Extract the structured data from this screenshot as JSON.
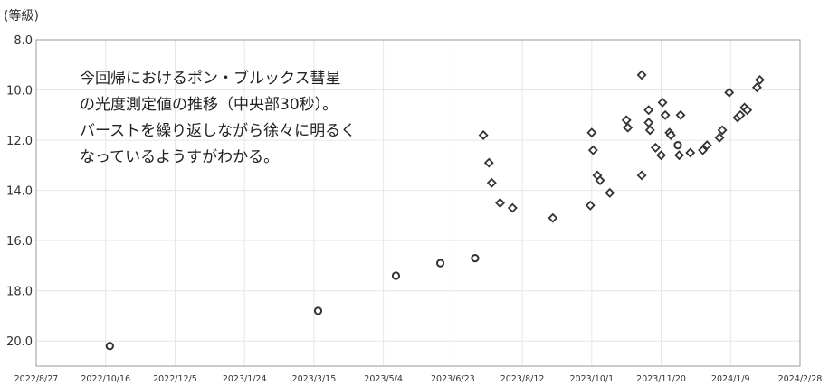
{
  "chart_data": {
    "type": "scatter",
    "ylabel": "(等級)",
    "annotation_lines": [
      "今回帰におけるポン・ブルックス彗星",
      "の光度測定値の推移（中央部30秒）。",
      "バーストを繰り返しながら徐々に明るく",
      "なっているようすがわかる。"
    ],
    "x_ticks": [
      "2022/8/27",
      "2022/10/16",
      "2022/12/5",
      "2023/1/24",
      "2023/3/15",
      "2023/5/4",
      "2023/6/23",
      "2023/8/12",
      "2023/10/1",
      "2023/11/20",
      "2024/1/9",
      "2024/2/28"
    ],
    "y_ticks": [
      "8.0",
      "10.0",
      "12.0",
      "14.0",
      "16.0",
      "18.0",
      "20.0"
    ],
    "xlim": [
      "2022/8/27",
      "2024/2/28"
    ],
    "ylim": [
      8.0,
      21.0
    ],
    "y_inverted": true,
    "grid": true,
    "series": [
      {
        "marker": "circle",
        "color": "#333333",
        "points": [
          {
            "x": "2022/10/19",
            "y": 20.2
          },
          {
            "x": "2023/3/18",
            "y": 18.8
          },
          {
            "x": "2023/5/13",
            "y": 17.4
          },
          {
            "x": "2023/6/14",
            "y": 16.9
          },
          {
            "x": "2023/7/9",
            "y": 16.7
          },
          {
            "x": "2023/12/2",
            "y": 12.2
          }
        ]
      },
      {
        "marker": "diamond",
        "color": "#333333",
        "points": [
          {
            "x": "2023/7/15",
            "y": 11.8
          },
          {
            "x": "2023/7/19",
            "y": 12.9
          },
          {
            "x": "2023/7/21",
            "y": 13.7
          },
          {
            "x": "2023/7/27",
            "y": 14.5
          },
          {
            "x": "2023/8/5",
            "y": 14.7
          },
          {
            "x": "2023/9/3",
            "y": 15.1
          },
          {
            "x": "2023/9/30",
            "y": 14.6
          },
          {
            "x": "2023/10/1",
            "y": 11.7
          },
          {
            "x": "2023/10/2",
            "y": 12.4
          },
          {
            "x": "2023/10/5",
            "y": 13.4
          },
          {
            "x": "2023/10/7",
            "y": 13.6
          },
          {
            "x": "2023/10/14",
            "y": 14.1
          },
          {
            "x": "2023/10/26",
            "y": 11.2
          },
          {
            "x": "2023/10/27",
            "y": 11.5
          },
          {
            "x": "2023/11/6",
            "y": 13.4
          },
          {
            "x": "2023/11/6",
            "y": 9.4
          },
          {
            "x": "2023/11/11",
            "y": 10.8
          },
          {
            "x": "2023/11/11",
            "y": 11.3
          },
          {
            "x": "2023/11/12",
            "y": 11.6
          },
          {
            "x": "2023/11/16",
            "y": 12.3
          },
          {
            "x": "2023/11/20",
            "y": 12.6
          },
          {
            "x": "2023/11/21",
            "y": 10.5
          },
          {
            "x": "2023/11/23",
            "y": 11.0
          },
          {
            "x": "2023/11/26",
            "y": 11.7
          },
          {
            "x": "2023/11/27",
            "y": 11.8
          },
          {
            "x": "2023/12/3",
            "y": 12.6
          },
          {
            "x": "2023/12/4",
            "y": 11.0
          },
          {
            "x": "2023/12/11",
            "y": 12.5
          },
          {
            "x": "2023/12/20",
            "y": 12.4
          },
          {
            "x": "2023/12/23",
            "y": 12.2
          },
          {
            "x": "2024/1/1",
            "y": 11.9
          },
          {
            "x": "2024/1/3",
            "y": 11.6
          },
          {
            "x": "2024/1/8",
            "y": 10.1
          },
          {
            "x": "2024/1/14",
            "y": 11.1
          },
          {
            "x": "2024/1/16",
            "y": 11.0
          },
          {
            "x": "2024/1/19",
            "y": 10.7
          },
          {
            "x": "2024/1/21",
            "y": 10.8
          },
          {
            "x": "2024/1/28",
            "y": 9.9
          },
          {
            "x": "2024/1/30",
            "y": 9.6
          }
        ]
      }
    ]
  }
}
